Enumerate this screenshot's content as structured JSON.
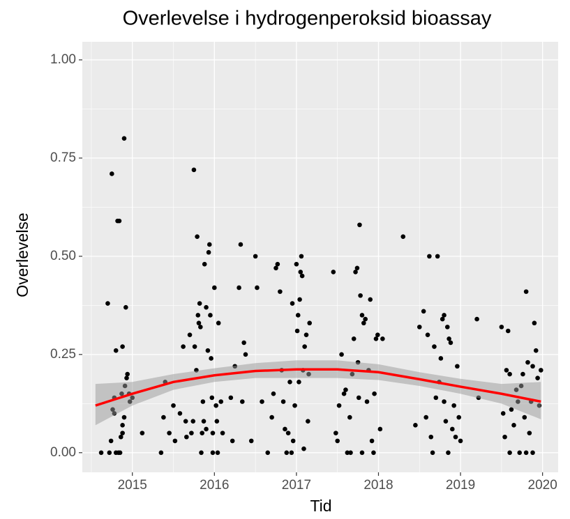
{
  "chart_data": {
    "type": "scatter",
    "title": "Overlevelse i hydrogenperoksid bioassay",
    "x_label": "Tid",
    "y_label": "Overlevelse",
    "xlim": [
      2014.39,
      2020.19
    ],
    "ylim": [
      -0.05,
      1.046
    ],
    "xticks": [
      2015,
      2016,
      2017,
      2018,
      2019,
      2020
    ],
    "yticks": [
      {
        "value": 0,
        "label": "0.00"
      },
      {
        "value": 0.25,
        "label": "0.25"
      },
      {
        "value": 0.5,
        "label": "0.50"
      },
      {
        "value": 0.75,
        "label": "0.75"
      },
      {
        "value": 1,
        "label": "1.00"
      }
    ],
    "x_minor_ticks": [
      2014.5,
      2015.5,
      2016.5,
      2017.5,
      2018.5,
      2019.5
    ],
    "y_minor_ticks": [
      0.125,
      0.375,
      0.625,
      0.875
    ],
    "grid": true,
    "color": "#000000",
    "x": [
      2014.62,
      2014.7,
      2014.75,
      2014.72,
      2014.74,
      2014.76,
      2014.78,
      2014.8,
      2014.82,
      2014.84,
      2014.83,
      2014.85,
      2014.86,
      2014.87,
      2014.88,
      2014.9,
      2014.88,
      2014.9,
      2014.92,
      2014.91,
      2014.93,
      2014.94,
      2014.96,
      2014.97,
      2015.0,
      2014.8,
      2014.88,
      2014.78,
      2015.12,
      2015.35,
      2015.38,
      2015.4,
      2015.45,
      2015.5,
      2015.52,
      2015.58,
      2015.62,
      2015.65,
      2015.66,
      2015.7,
      2015.72,
      2015.74,
      2015.75,
      2015.76,
      2015.78,
      2015.79,
      2015.8,
      2015.81,
      2015.82,
      2015.83,
      2015.84,
      2015.85,
      2015.86,
      2015.87,
      2015.88,
      2015.9,
      2015.92,
      2015.93,
      2015.94,
      2015.95,
      2015.96,
      2015.97,
      2015.98,
      2016.0,
      2016.02,
      2016.03,
      2016.05,
      2016.08,
      2016.04,
      2015.98,
      2015.9,
      2016.1,
      2016.2,
      2016.22,
      2016.25,
      2016.3,
      2016.32,
      2016.34,
      2016.36,
      2016.38,
      2016.45,
      2016.5,
      2016.52,
      2016.58,
      2016.65,
      2016.7,
      2016.72,
      2016.75,
      2016.77,
      2016.8,
      2016.82,
      2016.84,
      2016.9,
      2016.92,
      2016.95,
      2016.96,
      2016.98,
      2017.0,
      2017.01,
      2017.02,
      2017.03,
      2017.04,
      2017.05,
      2017.06,
      2017.07,
      2017.08,
      2017.09,
      2017.1,
      2017.12,
      2017.15,
      2017.16,
      2017.14,
      2016.94,
      2016.88,
      2016.86,
      2017.45,
      2017.48,
      2017.5,
      2017.52,
      2017.55,
      2017.58,
      2017.6,
      2017.62,
      2017.65,
      2017.68,
      2017.7,
      2017.72,
      2017.74,
      2017.75,
      2017.76,
      2017.77,
      2017.78,
      2017.8,
      2017.82,
      2017.84,
      2017.86,
      2017.88,
      2017.9,
      2017.92,
      2017.95,
      2017.97,
      2017.99,
      2018.02,
      2018.05,
      2017.66,
      2017.8,
      2017.94,
      2018.3,
      2018.45,
      2018.5,
      2018.55,
      2018.58,
      2018.6,
      2018.62,
      2018.64,
      2018.66,
      2018.68,
      2018.7,
      2018.72,
      2018.74,
      2018.76,
      2018.78,
      2018.8,
      2018.82,
      2018.84,
      2018.86,
      2018.88,
      2018.9,
      2018.92,
      2018.94,
      2018.96,
      2018.98,
      2019.0,
      2018.85,
      2018.8,
      2019.2,
      2019.22,
      2019.5,
      2019.52,
      2019.54,
      2019.56,
      2019.58,
      2019.6,
      2019.62,
      2019.65,
      2019.68,
      2019.7,
      2019.72,
      2019.74,
      2019.76,
      2019.78,
      2019.8,
      2019.82,
      2019.84,
      2019.86,
      2019.88,
      2019.9,
      2019.92,
      2019.94,
      2019.96,
      2019.98,
      2019.88,
      2019.8,
      2019.6
    ],
    "values": [
      0,
      0.38,
      0.71,
      0,
      0.03,
      0.11,
      0.1,
      0.26,
      0.59,
      0.59,
      0,
      0,
      0.04,
      0.15,
      0.27,
      0.09,
      0.07,
      0.8,
      0.37,
      0.17,
      0.19,
      0.2,
      0.15,
      0.13,
      0.14,
      0,
      0.05,
      0.14,
      0.05,
      0,
      0.09,
      0.18,
      0.05,
      0.12,
      0.03,
      0.1,
      0.27,
      0.08,
      0.04,
      0.3,
      0.05,
      0.08,
      0.72,
      0.27,
      0.21,
      0.55,
      0.35,
      0.33,
      0.38,
      0.32,
      0,
      0.05,
      0.13,
      0.08,
      0.48,
      0.37,
      0.26,
      0.51,
      0.53,
      0.35,
      0.24,
      0.14,
      0.05,
      0.42,
      0.12,
      0.08,
      0.33,
      0.13,
      0,
      0,
      0.06,
      0.05,
      0.14,
      0.03,
      0.22,
      0.42,
      0.53,
      0.13,
      0.28,
      0.25,
      0.03,
      0.5,
      0.42,
      0.13,
      0,
      0.09,
      0.15,
      0.47,
      0.48,
      0.41,
      0.21,
      0.13,
      0.05,
      0.18,
      0.38,
      0.03,
      0.12,
      0.48,
      0.31,
      0.35,
      0.18,
      0.39,
      0.46,
      0.5,
      0.45,
      0.21,
      0.01,
      0.27,
      0.3,
      0.2,
      0.33,
      0.08,
      0,
      0,
      0.06,
      0.46,
      0.05,
      0.03,
      0.12,
      0.25,
      0.15,
      0.16,
      0,
      0.09,
      0.2,
      0.29,
      0.46,
      0.47,
      0.23,
      0.14,
      0.58,
      0.4,
      0.35,
      0.33,
      0.34,
      0.13,
      0.21,
      0.39,
      0.03,
      0.15,
      0.29,
      0.3,
      0.06,
      0.29,
      0,
      0,
      0,
      0.55,
      0.07,
      0.32,
      0.36,
      0.09,
      0.3,
      0.5,
      0.04,
      0,
      0.27,
      0.14,
      0.5,
      0.18,
      0.24,
      0.34,
      0.35,
      0.08,
      0.32,
      0.29,
      0.28,
      0.06,
      0.12,
      0.04,
      0.22,
      0.09,
      0.03,
      0,
      0.13,
      0.34,
      0.14,
      0.32,
      0.1,
      0.04,
      0.21,
      0.31,
      0.2,
      0.11,
      0.07,
      0.16,
      0.13,
      0,
      0.17,
      0.2,
      0.09,
      0.41,
      0.23,
      0.05,
      0.13,
      0.22,
      0.33,
      0.26,
      0.19,
      0.12,
      0.21,
      0,
      0,
      0
    ],
    "smooth": {
      "color": "#ff0000",
      "band_color": "#999999",
      "x": [
        2014.55,
        2015,
        2015.5,
        2016,
        2016.5,
        2017,
        2017.5,
        2018,
        2018.5,
        2019,
        2019.5,
        2019.98
      ],
      "values": [
        0.12,
        0.15,
        0.18,
        0.197,
        0.208,
        0.212,
        0.212,
        0.205,
        0.187,
        0.168,
        0.15,
        0.13
      ],
      "lower": [
        0.07,
        0.12,
        0.16,
        0.18,
        0.19,
        0.19,
        0.19,
        0.185,
        0.17,
        0.15,
        0.125,
        0.085
      ],
      "upper": [
        0.175,
        0.18,
        0.2,
        0.215,
        0.228,
        0.235,
        0.235,
        0.225,
        0.205,
        0.188,
        0.175,
        0.18
      ]
    }
  }
}
